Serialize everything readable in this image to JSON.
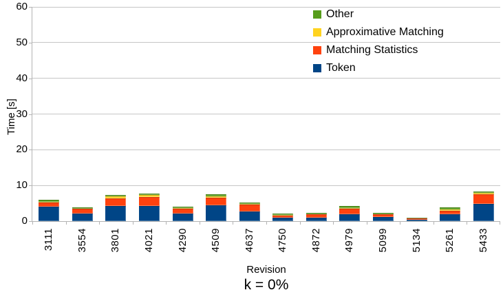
{
  "chart_data": {
    "type": "bar",
    "stacked": true,
    "title": "",
    "subtitle": "k = 0%",
    "xlabel": "Revision",
    "ylabel": "Time [s]",
    "ylim": [
      0,
      60
    ],
    "ytick_step": 10,
    "grid": true,
    "grid_color": "#c6c6c6",
    "axis_color": "#b3b3b3",
    "legend_position": "top-right-inside",
    "legend_order": [
      "Other",
      "Approximative Matching",
      "Matching Statistics",
      "Token"
    ],
    "categories": [
      "3111",
      "3554",
      "3801",
      "4021",
      "4290",
      "4509",
      "4637",
      "4750",
      "4872",
      "4979",
      "5099",
      "5134",
      "5261",
      "5433"
    ],
    "series": [
      {
        "name": "Token",
        "color": "#004586",
        "values": [
          4.1,
          2.2,
          4.3,
          4.3,
          2.2,
          4.4,
          2.7,
          0.9,
          1.0,
          2.0,
          1.2,
          0.4,
          1.9,
          4.9
        ]
      },
      {
        "name": "Matching Statistics",
        "color": "#FF420E",
        "values": [
          1.2,
          1.25,
          2.1,
          2.4,
          1.3,
          2.1,
          2.0,
          0.7,
          0.9,
          1.45,
          0.7,
          0.3,
          1.0,
          2.65
        ]
      },
      {
        "name": "Approximative Matching",
        "color": "#FFD320",
        "values": [
          0.2,
          0.1,
          0.5,
          0.55,
          0.1,
          0.45,
          0.1,
          0.15,
          0.1,
          0.25,
          0.1,
          0.05,
          0.4,
          0.35
        ]
      },
      {
        "name": "Other",
        "color": "#579D1C",
        "values": [
          0.45,
          0.4,
          0.4,
          0.45,
          0.45,
          0.55,
          0.5,
          0.35,
          0.35,
          0.55,
          0.35,
          0.3,
          0.5,
          0.35
        ]
      }
    ]
  }
}
